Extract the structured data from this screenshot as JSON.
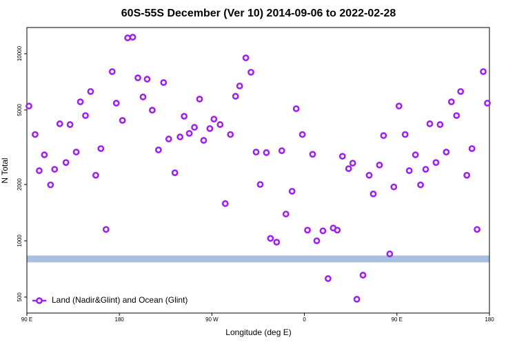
{
  "chart_data": {
    "type": "scatter",
    "title": "60S-55S December (Ver 10)   2014-09-06 to 2022-02-28",
    "x_label": "Longitude (deg E)",
    "y_label": "N Total",
    "xlim": [
      -270,
      180
    ],
    "xticks": [
      {
        "value": -270,
        "label": "90 E"
      },
      {
        "value": -180,
        "label": "180"
      },
      {
        "value": -90,
        "label": "90 W"
      },
      0,
      {
        "value": 90,
        "label": "90 E"
      },
      180
    ],
    "ylim": [
      411,
      13800
    ],
    "y_log": true,
    "yticks": [
      500,
      1000,
      2000,
      5000,
      10000
    ],
    "reference_line": {
      "value": 800,
      "color": "#a9bfe0"
    },
    "legend": "bottom-left",
    "series": [
      {
        "name": "Land (Nadir&Glint) and Ocean (Glint)",
        "color": "#a020f0",
        "x": [
          -268,
          -262,
          -258,
          -253,
          -247,
          -243,
          -238,
          -232,
          -228,
          -222,
          -218,
          -213,
          -208,
          -203,
          -198,
          -193,
          -187,
          -183,
          -177,
          -172,
          -167,
          -162,
          -157,
          -153,
          -148,
          -142,
          -137,
          -132,
          -126,
          -121,
          -117,
          -112,
          -107,
          -102,
          -98,
          -92,
          -88,
          -82,
          -77,
          -72,
          -67,
          -63,
          -57,
          -52,
          -47,
          -43,
          -37,
          -33,
          -27,
          -22,
          -18,
          -12,
          -8,
          -2,
          3,
          8,
          12,
          18,
          23,
          28,
          32,
          37,
          43,
          47,
          51,
          57,
          63,
          67,
          73,
          77,
          83,
          87,
          92,
          98,
          102,
          108,
          113,
          118,
          122,
          128,
          132,
          138,
          143,
          148,
          152,
          158,
          163,
          168,
          174,
          178
        ],
        "values": [
          5250,
          3700,
          2370,
          2880,
          1990,
          2410,
          4220,
          2620,
          4180,
          2980,
          5530,
          4670,
          6280,
          2240,
          3110,
          1150,
          8020,
          5440,
          4400,
          12150,
          12250,
          7430,
          5870,
          7310,
          4990,
          3060,
          7010,
          3500,
          2310,
          3590,
          4630,
          3750,
          4040,
          5720,
          3440,
          3980,
          4470,
          4180,
          1580,
          3700,
          5920,
          6720,
          9500,
          7960,
          2980,
          2000,
          2960,
          1030,
          983,
          3030,
          1390,
          1840,
          5080,
          3700,
          1140,
          2900,
          1000,
          1130,
          628,
          1170,
          1140,
          2830,
          2430,
          2600,
          487,
          655,
          2240,
          1780,
          2540,
          3650,
          851,
          1940,
          5250,
          3700,
          2370,
          2880,
          1990,
          2410,
          4220,
          2620,
          4180,
          2980,
          5530,
          4670,
          6280,
          2240,
          3110,
          1150,
          8020,
          5440
        ]
      }
    ]
  }
}
